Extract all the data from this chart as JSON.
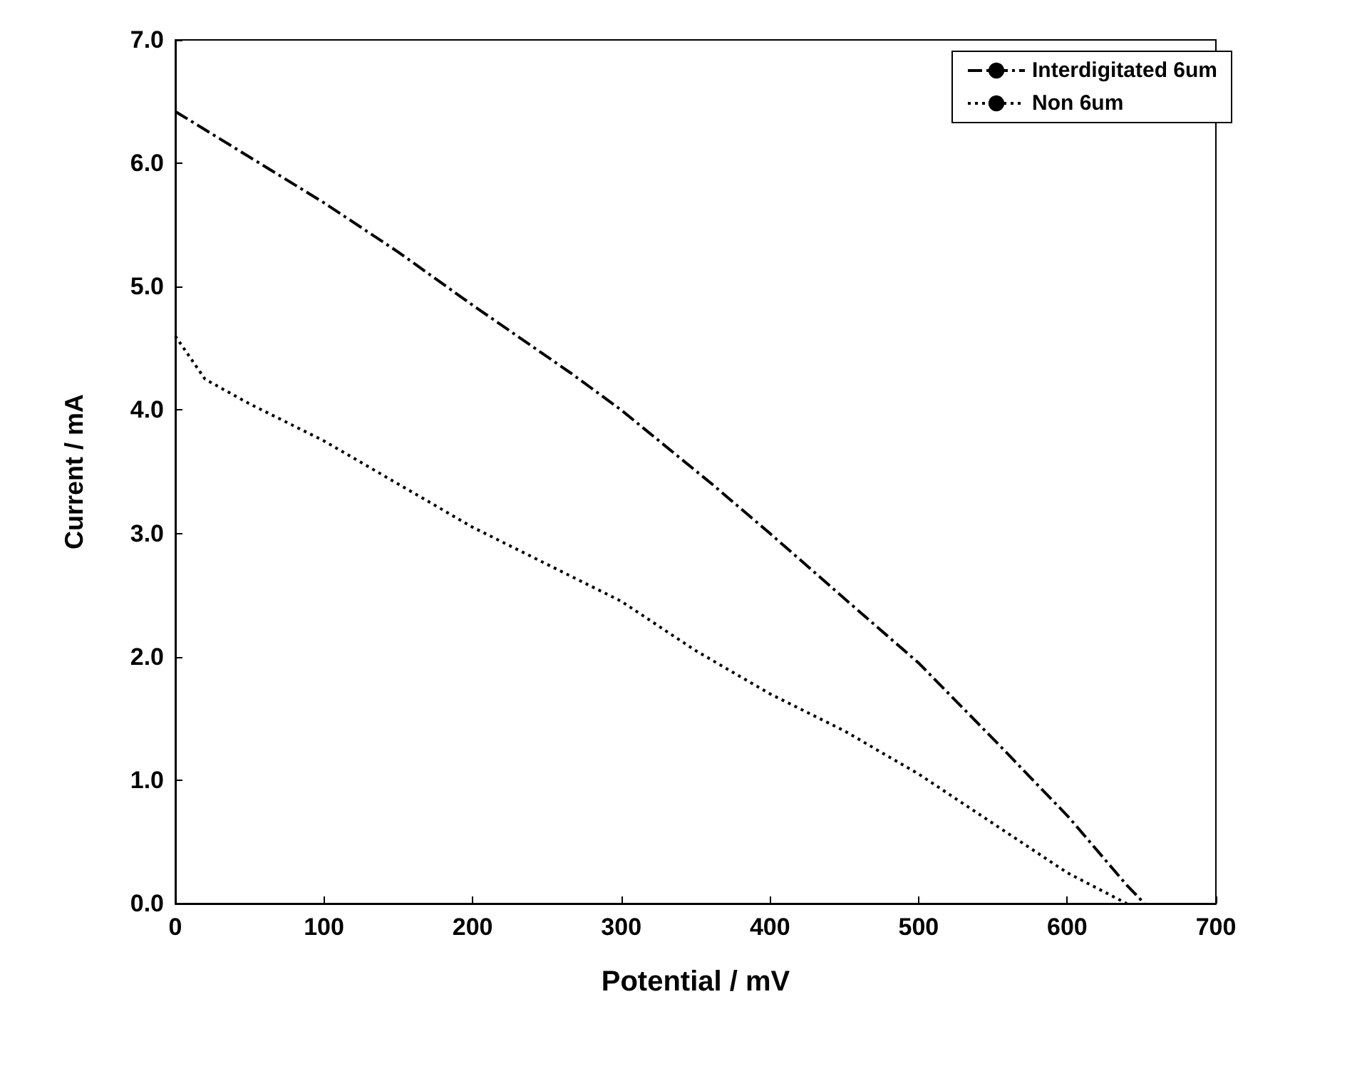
{
  "chart_data": {
    "type": "line",
    "xlabel": "Potential / mV",
    "ylabel": "Current / mA",
    "xlim": [
      0,
      700
    ],
    "xticks": [
      0,
      100,
      200,
      300,
      400,
      500,
      600,
      700
    ],
    "ylim": [
      0,
      7
    ],
    "yticks": [
      {
        "value": 0,
        "label": "0.0"
      },
      {
        "value": 1,
        "label": "1.0"
      },
      {
        "value": 2,
        "label": "2.0"
      },
      {
        "value": 3,
        "label": "3.0"
      },
      {
        "value": 4,
        "label": "4.0"
      },
      {
        "value": 5,
        "label": "5.0"
      },
      {
        "value": 6,
        "label": "6.0"
      },
      {
        "value": 7,
        "label": "7.0"
      }
    ],
    "grid": false,
    "legend": "top right",
    "marker": "none",
    "series": [
      {
        "name": "Interdigitated 6um",
        "color": "#000000",
        "line_style": "dashed",
        "x": [
          0,
          50,
          100,
          150,
          200,
          266,
          300,
          361,
          400,
          457,
          500,
          553,
          601,
          640,
          652
        ],
        "values": [
          6.42,
          6.05,
          5.68,
          5.28,
          4.85,
          4.3,
          4.0,
          3.4,
          3.0,
          2.4,
          1.95,
          1.3,
          0.7,
          0.15,
          0
        ]
      },
      {
        "name": "Non 6um",
        "color": "#000000",
        "line_style": "dotted",
        "x": [
          0,
          20,
          50,
          100,
          150,
          200,
          250,
          300,
          350,
          400,
          450,
          500,
          550,
          600,
          640
        ],
        "values": [
          4.6,
          4.25,
          4.05,
          3.75,
          3.4,
          3.05,
          2.75,
          2.45,
          2.05,
          1.7,
          1.4,
          1.05,
          0.65,
          0.25,
          0
        ]
      }
    ]
  }
}
